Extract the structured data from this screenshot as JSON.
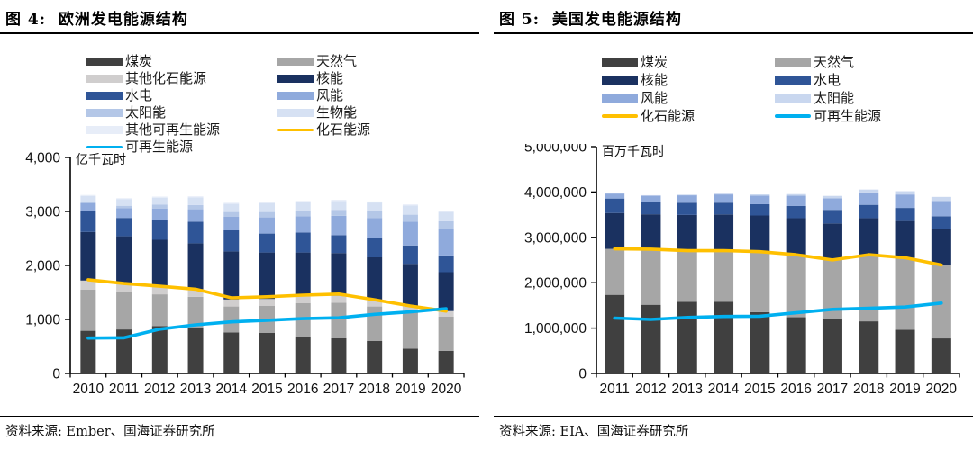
{
  "chart_data": [
    {
      "type": "bar",
      "stacked": true,
      "title": "图 4:  欧洲发电能源结构",
      "source": "资料来源: Ember、国海证券研究所",
      "unit": "亿千瓦时",
      "ylim": [
        0,
        4000
      ],
      "ytick_step": 1000,
      "yticks": [
        0,
        1000,
        2000,
        3000,
        4000
      ],
      "legend_position": "top-two-columns",
      "grid": false,
      "categories": [
        "2010",
        "2011",
        "2012",
        "2013",
        "2014",
        "2015",
        "2016",
        "2017",
        "2018",
        "2019",
        "2020"
      ],
      "series": [
        {
          "name": "煤炭",
          "color": "#404040",
          "values": [
            790,
            815,
            875,
            840,
            760,
            750,
            680,
            650,
            600,
            460,
            420
          ]
        },
        {
          "name": "天然气",
          "color": "#a6a6a6",
          "values": [
            760,
            690,
            590,
            580,
            480,
            500,
            620,
            660,
            640,
            680,
            630
          ]
        },
        {
          "name": "其他化石能源",
          "color": "#d0cece",
          "values": [
            170,
            160,
            150,
            140,
            130,
            130,
            130,
            130,
            120,
            110,
            105
          ]
        },
        {
          "name": "核能",
          "color": "#1a3160",
          "values": [
            900,
            875,
            860,
            850,
            890,
            860,
            810,
            790,
            790,
            780,
            720
          ]
        },
        {
          "name": "水电",
          "color": "#2f5597",
          "values": [
            380,
            340,
            370,
            400,
            390,
            350,
            370,
            330,
            350,
            340,
            310
          ]
        },
        {
          "name": "风能",
          "color": "#8faadc",
          "values": [
            150,
            180,
            210,
            230,
            250,
            300,
            300,
            360,
            380,
            440,
            490
          ]
        },
        {
          "name": "太阳能",
          "color": "#b4c7e7",
          "values": [
            25,
            45,
            70,
            80,
            90,
            100,
            105,
            110,
            120,
            130,
            145
          ]
        },
        {
          "name": "生物能",
          "color": "#d6e1f3",
          "values": [
            110,
            120,
            130,
            140,
            150,
            160,
            160,
            165,
            165,
            170,
            170
          ]
        },
        {
          "name": "其他可再生能源",
          "color": "#e7edf8",
          "values": [
            20,
            20,
            20,
            20,
            20,
            20,
            20,
            20,
            20,
            20,
            20
          ]
        }
      ],
      "lines": [
        {
          "name": "化石能源",
          "color": "#ffc000",
          "values": [
            1735,
            1665,
            1615,
            1560,
            1400,
            1420,
            1450,
            1470,
            1365,
            1250,
            1155
          ]
        },
        {
          "name": "可再生能源",
          "color": "#00b0f0",
          "values": [
            655,
            660,
            820,
            900,
            955,
            985,
            1015,
            1030,
            1095,
            1140,
            1200
          ]
        }
      ],
      "legend_columns": [
        [
          {
            "label": "煤炭",
            "color": "#404040",
            "kind": "bar"
          },
          {
            "label": "其他化石能源",
            "color": "#d0cece",
            "kind": "bar"
          },
          {
            "label": "水电",
            "color": "#2f5597",
            "kind": "bar"
          },
          {
            "label": "太阳能",
            "color": "#b4c7e7",
            "kind": "bar"
          },
          {
            "label": "其他可再生能源",
            "color": "#e7edf8",
            "kind": "bar"
          },
          {
            "label": "可再生能源",
            "color": "#00b0f0",
            "kind": "line"
          }
        ],
        [
          {
            "label": "天然气",
            "color": "#a6a6a6",
            "kind": "bar"
          },
          {
            "label": "核能",
            "color": "#1a3160",
            "kind": "bar"
          },
          {
            "label": "风能",
            "color": "#8faadc",
            "kind": "bar"
          },
          {
            "label": "生物能",
            "color": "#d6e1f3",
            "kind": "bar"
          },
          {
            "label": "化石能源",
            "color": "#ffc000",
            "kind": "line"
          }
        ]
      ]
    },
    {
      "type": "bar",
      "stacked": true,
      "title": "图 5:  美国发电能源结构",
      "source": "资料来源: EIA、国海证券研究所",
      "unit": "百万千瓦时",
      "ylim": [
        0,
        5000000
      ],
      "ytick_step": 1000000,
      "yticks": [
        0,
        1000000,
        2000000,
        3000000,
        4000000,
        5000000
      ],
      "legend_position": "top-two-columns",
      "grid": false,
      "categories": [
        "2011",
        "2012",
        "2013",
        "2014",
        "2015",
        "2016",
        "2017",
        "2018",
        "2019",
        "2020"
      ],
      "series": [
        {
          "name": "煤炭",
          "color": "#404040",
          "values": [
            1733000,
            1514000,
            1581000,
            1582000,
            1352000,
            1239000,
            1206000,
            1149000,
            965000,
            773000
          ]
        },
        {
          "name": "天然气",
          "color": "#a6a6a6",
          "values": [
            1014000,
            1226000,
            1125000,
            1127000,
            1333000,
            1378000,
            1296000,
            1468000,
            1587000,
            1617000
          ]
        },
        {
          "name": "核能",
          "color": "#1a3160",
          "values": [
            790000,
            769000,
            789000,
            797000,
            797000,
            806000,
            805000,
            807000,
            809000,
            790000
          ]
        },
        {
          "name": "水电",
          "color": "#2f5597",
          "values": [
            319000,
            276000,
            269000,
            259000,
            249000,
            268000,
            300000,
            293000,
            288000,
            285000
          ]
        },
        {
          "name": "风能",
          "color": "#8faadc",
          "values": [
            120000,
            141000,
            168000,
            182000,
            191000,
            227000,
            254000,
            273000,
            296000,
            338000
          ]
        },
        {
          "name": "太阳能",
          "color": "#c9d7ef",
          "values": [
            2000,
            4000,
            9000,
            18000,
            25000,
            36000,
            53000,
            64000,
            72000,
            89000
          ]
        }
      ],
      "lines": [
        {
          "name": "化石能源",
          "color": "#ffc000",
          "values": [
            2747000,
            2740000,
            2706000,
            2709000,
            2685000,
            2617000,
            2502000,
            2617000,
            2552000,
            2390000
          ]
        },
        {
          "name": "可再生能源",
          "color": "#00b0f0",
          "values": [
            1221000,
            1190000,
            1235000,
            1256000,
            1262000,
            1337000,
            1412000,
            1437000,
            1465000,
            1552000
          ]
        }
      ],
      "legend_columns": [
        [
          {
            "label": "煤炭",
            "color": "#404040",
            "kind": "bar"
          },
          {
            "label": "核能",
            "color": "#1a3160",
            "kind": "bar"
          },
          {
            "label": "风能",
            "color": "#8faadc",
            "kind": "bar"
          },
          {
            "label": "化石能源",
            "color": "#ffc000",
            "kind": "line"
          }
        ],
        [
          {
            "label": "天然气",
            "color": "#a6a6a6",
            "kind": "bar"
          },
          {
            "label": "水电",
            "color": "#2f5597",
            "kind": "bar"
          },
          {
            "label": "太阳能",
            "color": "#c9d7ef",
            "kind": "bar"
          },
          {
            "label": "可再生能源",
            "color": "#00b0f0",
            "kind": "line"
          }
        ]
      ]
    }
  ]
}
